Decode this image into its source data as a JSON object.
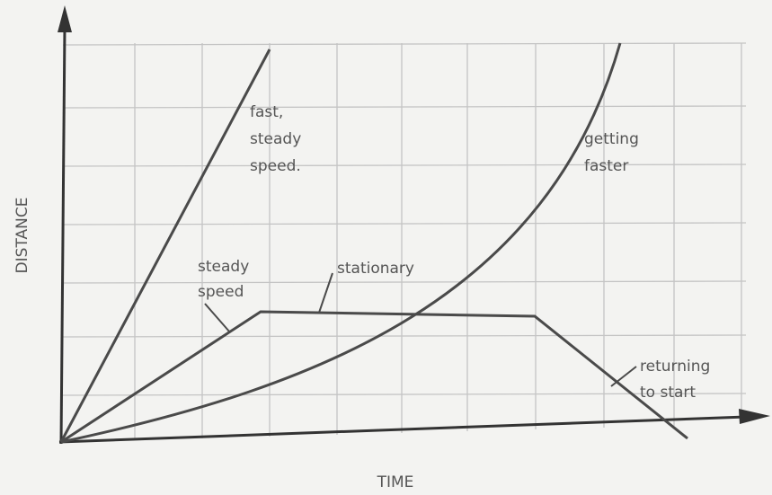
{
  "axes": {
    "y_label": "DISTANCE",
    "x_label": "TIME"
  },
  "annotations": [
    {
      "lines": [
        "fast,",
        "steady",
        "speed."
      ]
    },
    {
      "lines": [
        "getting",
        "faster"
      ]
    },
    {
      "lines": [
        "steady",
        "speed"
      ]
    },
    {
      "lines": [
        "stationary"
      ]
    },
    {
      "lines": [
        "returning",
        "to start"
      ]
    }
  ]
}
